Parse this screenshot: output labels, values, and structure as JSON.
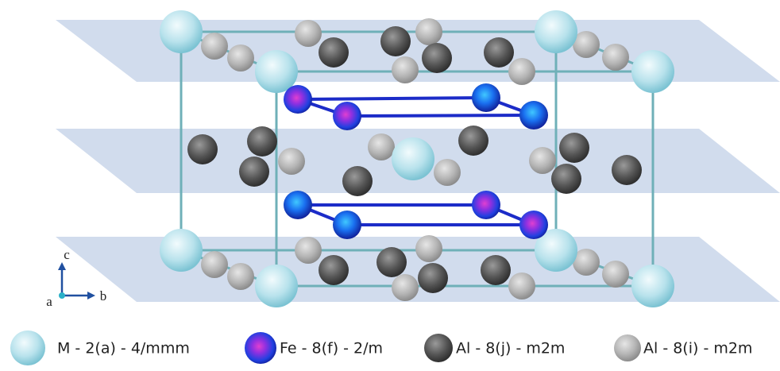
{
  "axes": {
    "c": "c",
    "a": "a",
    "b": "b"
  },
  "legend": [
    {
      "label": "M - 2(a) - 4/mmm"
    },
    {
      "label": "Fe - 8(f) - 2/m"
    },
    {
      "label": "Al - 8(j) - m2m"
    },
    {
      "label": "Al - 8(i) - m2m"
    }
  ]
}
